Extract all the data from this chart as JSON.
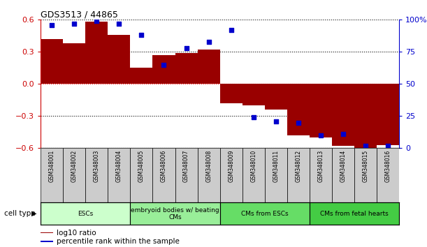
{
  "title": "GDS3513 / 44865",
  "samples": [
    "GSM348001",
    "GSM348002",
    "GSM348003",
    "GSM348004",
    "GSM348005",
    "GSM348006",
    "GSM348007",
    "GSM348008",
    "GSM348009",
    "GSM348010",
    "GSM348011",
    "GSM348012",
    "GSM348013",
    "GSM348014",
    "GSM348015",
    "GSM348016"
  ],
  "log10_ratio": [
    0.42,
    0.38,
    0.58,
    0.46,
    0.15,
    0.27,
    0.29,
    0.32,
    -0.18,
    -0.2,
    -0.24,
    -0.48,
    -0.5,
    -0.58,
    -0.6,
    -0.57
  ],
  "percentile_rank": [
    96,
    97,
    99,
    97,
    88,
    65,
    78,
    83,
    92,
    24,
    21,
    20,
    10,
    11,
    2,
    2
  ],
  "bar_color": "#990000",
  "dot_color": "#0000cc",
  "ylim_left": [
    -0.6,
    0.6
  ],
  "ylim_right": [
    0,
    100
  ],
  "yticks_left": [
    -0.6,
    -0.3,
    0,
    0.3,
    0.6
  ],
  "yticks_right": [
    0,
    25,
    50,
    75,
    100
  ],
  "ytick_labels_right": [
    "0",
    "25",
    "50",
    "75",
    "100%"
  ],
  "cell_type_groups": [
    {
      "label": "ESCs",
      "start": 0,
      "end": 3,
      "color": "#ccffcc"
    },
    {
      "label": "embryoid bodies w/ beating\nCMs",
      "start": 4,
      "end": 7,
      "color": "#99ee99"
    },
    {
      "label": "CMs from ESCs",
      "start": 8,
      "end": 11,
      "color": "#66dd66"
    },
    {
      "label": "CMs from fetal hearts",
      "start": 12,
      "end": 15,
      "color": "#44cc44"
    }
  ],
  "legend_label_red": "log10 ratio",
  "legend_label_blue": "percentile rank within the sample",
  "cell_type_label": "cell type",
  "tick_color_left": "#cc0000",
  "tick_color_right": "#0000cc",
  "bar_width": 1.0,
  "xlim": [
    -0.5,
    15.5
  ]
}
